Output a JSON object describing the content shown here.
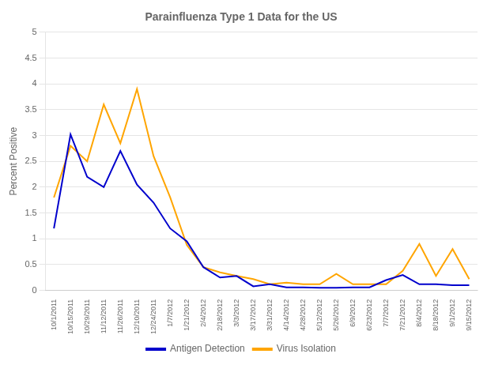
{
  "chart_data": {
    "type": "line",
    "title": "Parainfluenza Type 1 Data for the US",
    "ylabel": "Percent Positive",
    "categories": [
      "10/1/2011",
      "10/15/2011",
      "10/29/2011",
      "11/12/2011",
      "11/26/2011",
      "12/10/2011",
      "12/24/2011",
      "1/7/2012",
      "1/21/2012",
      "2/4/2012",
      "2/18/2012",
      "3/3/2012",
      "3/17/2012",
      "3/31/2012",
      "4/14/2012",
      "4/28/2012",
      "5/12/2012",
      "5/26/2012",
      "6/9/2012",
      "6/23/2012",
      "7/7/2012",
      "7/21/2012",
      "8/4/2012",
      "8/18/2012",
      "9/1/2012",
      "9/15/2012"
    ],
    "series": [
      {
        "name": "Antigen Detection",
        "color": "#0000CC",
        "values": [
          1.2,
          3.02,
          2.2,
          2.0,
          2.7,
          2.05,
          1.7,
          1.2,
          0.95,
          0.45,
          0.25,
          0.28,
          0.08,
          0.12,
          0.06,
          0.06,
          0.05,
          0.05,
          0.06,
          0.06,
          0.2,
          0.3,
          0.12,
          0.12,
          0.1,
          0.1
        ]
      },
      {
        "name": "Virus Isolation",
        "color": "#FFA500",
        "values": [
          1.8,
          2.8,
          2.5,
          3.6,
          2.85,
          3.9,
          2.6,
          1.8,
          0.88,
          0.45,
          0.35,
          0.28,
          0.22,
          0.12,
          0.15,
          0.12,
          0.12,
          0.32,
          0.12,
          0.12,
          0.12,
          0.38,
          0.9,
          0.28,
          0.8,
          0.22
        ]
      }
    ],
    "ylim": [
      0,
      5
    ],
    "yticks": [
      0,
      0.5,
      1,
      1.5,
      2,
      2.5,
      3,
      3.5,
      4,
      4.5,
      5
    ],
    "grid": true,
    "legend": "bottom"
  }
}
